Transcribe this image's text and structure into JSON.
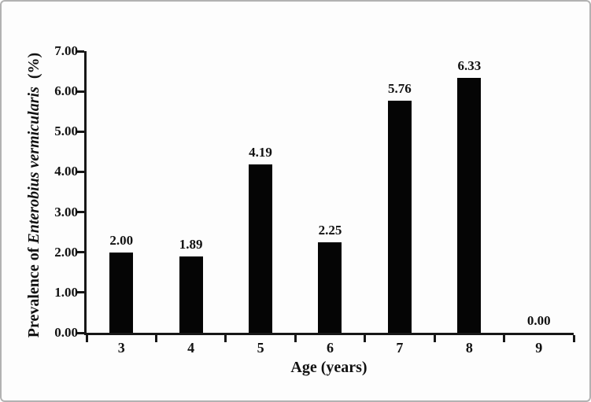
{
  "figure": {
    "background": "#fdfdfd",
    "border_color": "#b2b2b2"
  },
  "chart_data": {
    "type": "bar",
    "title": "",
    "xlabel": "Age (years)",
    "ylabel": {
      "prefix": "Prevalence of ",
      "italic": "Enterobius vermicularis",
      "suffix": "  (%)"
    },
    "categories": [
      "3",
      "4",
      "5",
      "6",
      "7",
      "8",
      "9"
    ],
    "values": [
      2.0,
      1.89,
      4.19,
      2.25,
      5.76,
      6.33,
      0.0
    ],
    "value_labels": [
      "2.00",
      "1.89",
      "4.19",
      "2.25",
      "5.76",
      "6.33",
      "0.00"
    ],
    "ylim": [
      0,
      7
    ],
    "yticks": [
      0,
      1,
      2,
      3,
      4,
      5,
      6,
      7
    ],
    "ytick_labels": [
      "0.00",
      "1.00",
      "2.00",
      "3.00",
      "4.00",
      "5.00",
      "6.00",
      "7.00"
    ],
    "grid": false,
    "legend": false,
    "bar_color": "#050505",
    "axis_color": "#171717",
    "text_color": "#111111"
  }
}
